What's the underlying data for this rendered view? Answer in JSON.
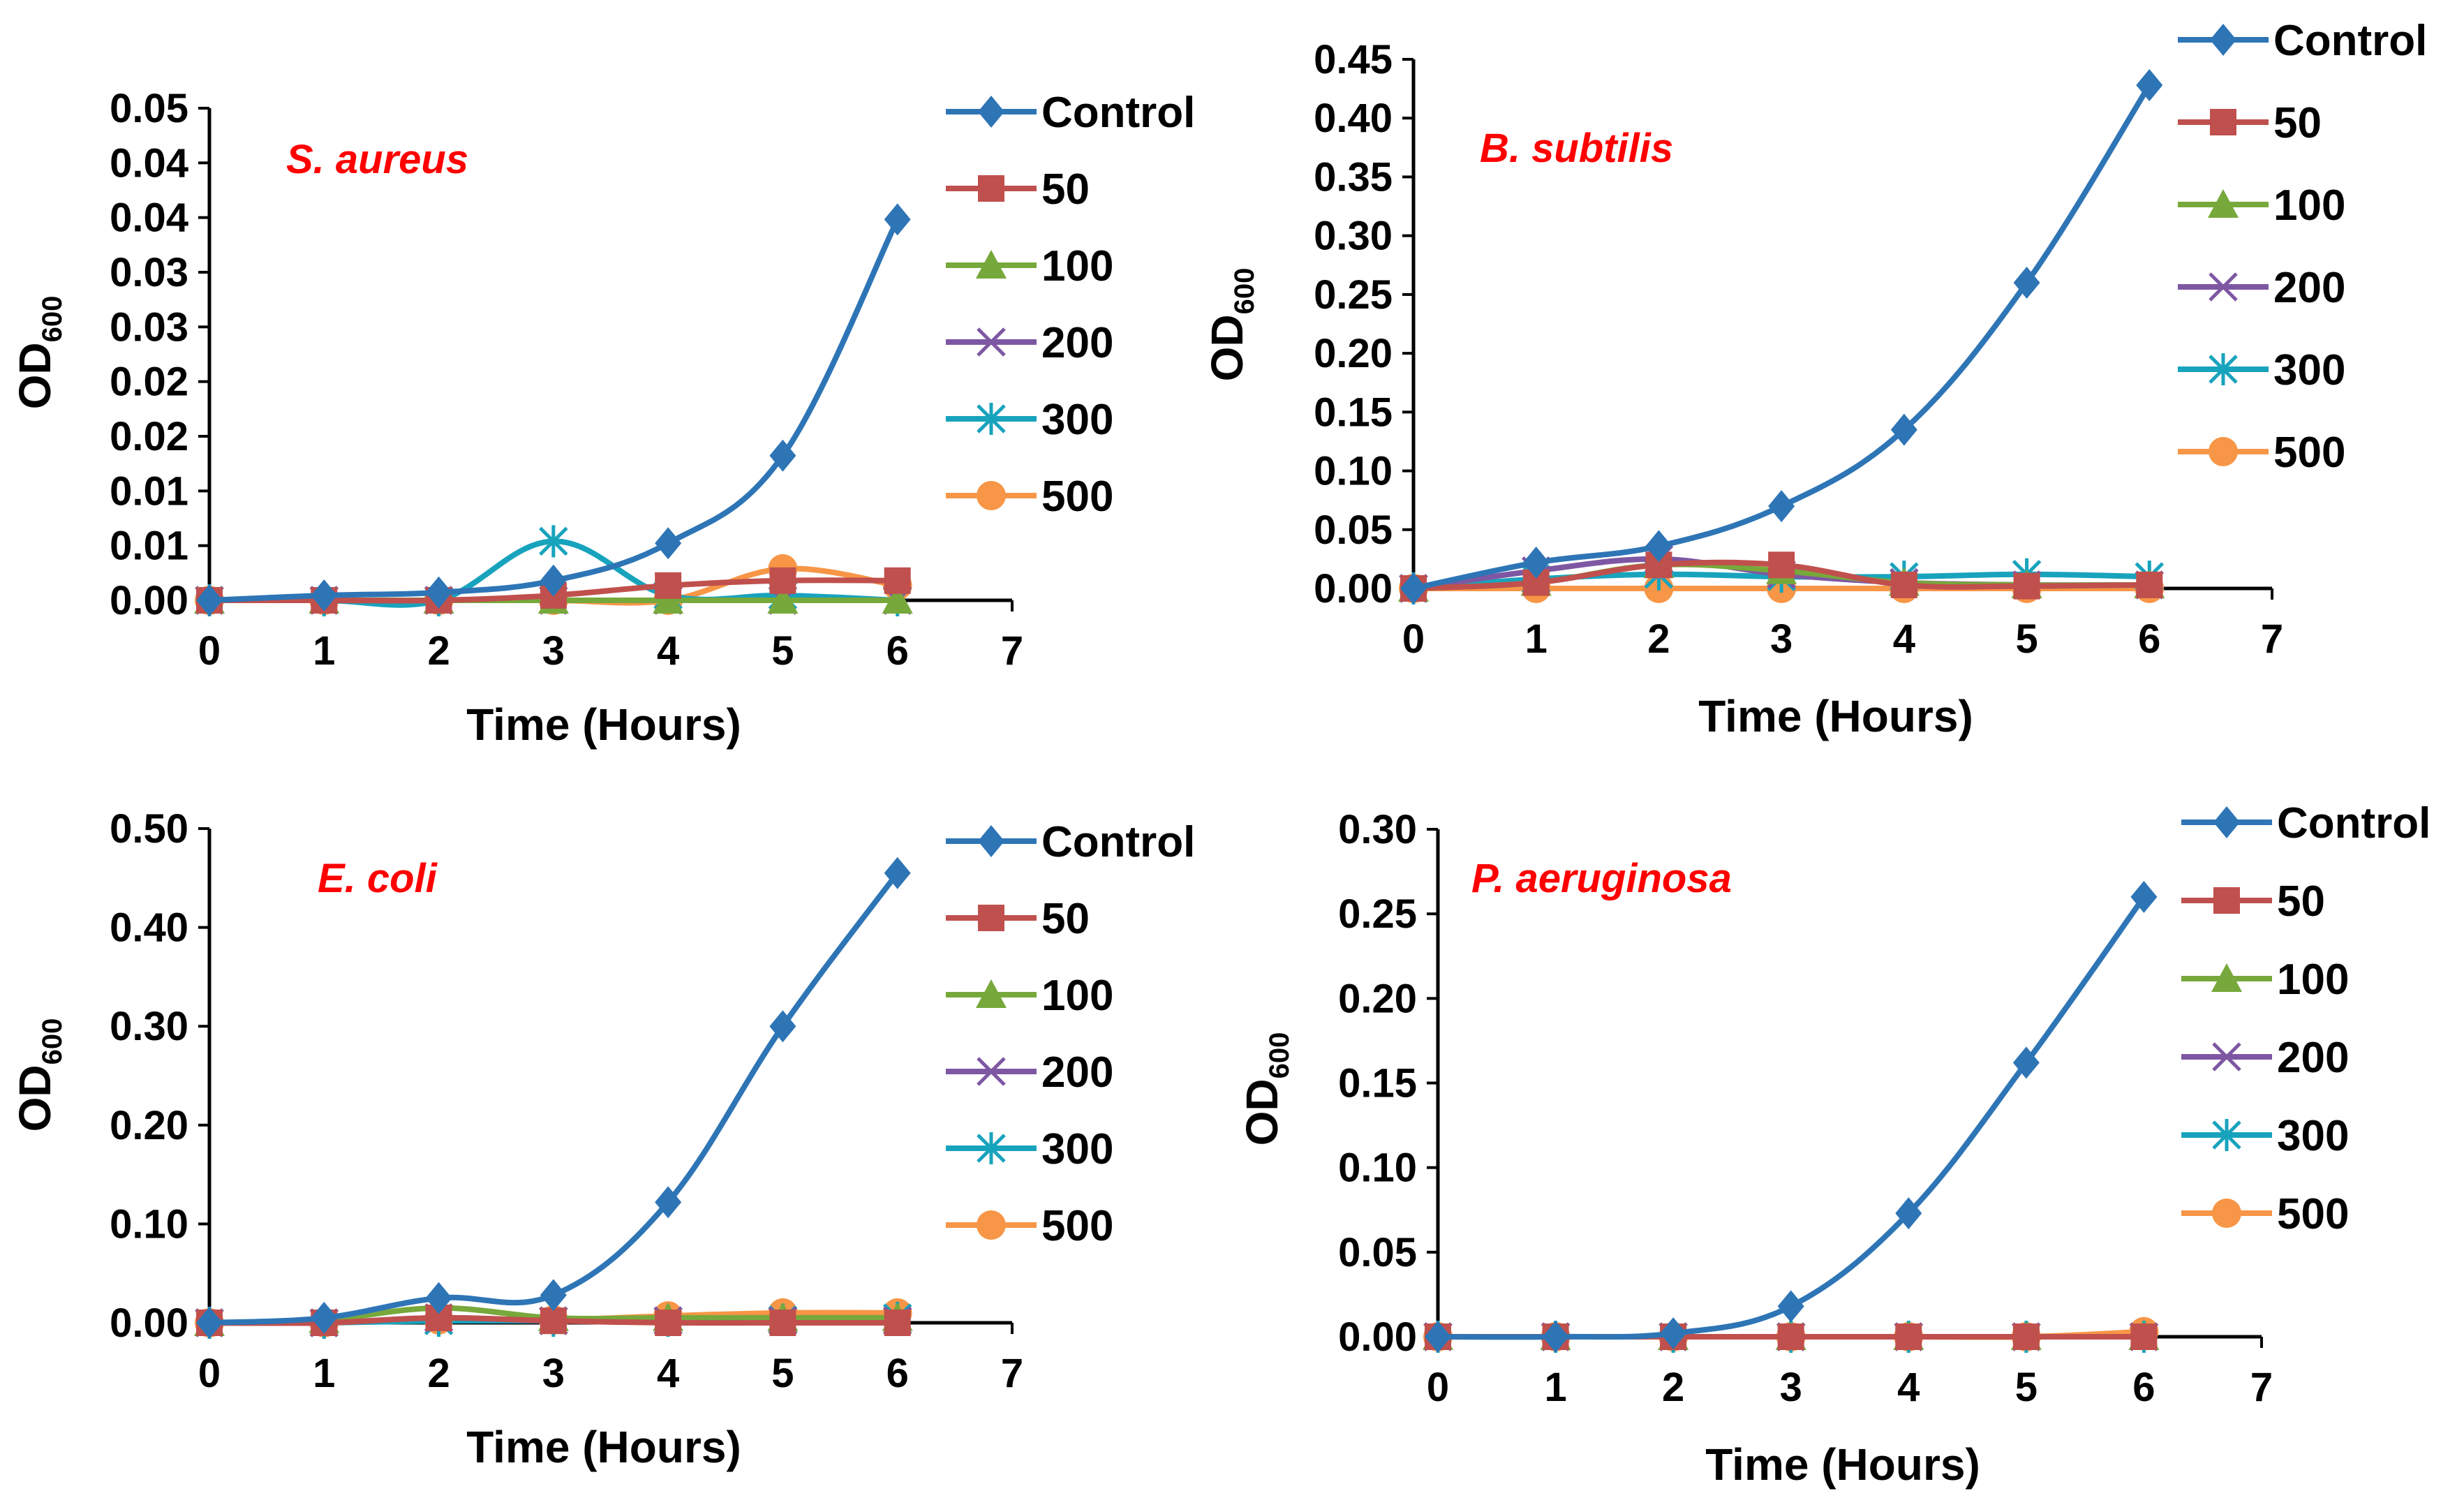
{
  "chart_data": [
    {
      "type": "line",
      "title": "S. aureus",
      "xlabel": "Time (Hours)",
      "ylabel": "OD",
      "ylabel_sub": "600",
      "xlim": [
        0,
        7
      ],
      "ylim": [
        0,
        0.05
      ],
      "xticks": [
        "0",
        "1",
        "2",
        "3",
        "4",
        "5",
        "6",
        "7"
      ],
      "yticks": [
        "0.00",
        "0.01",
        "0.01",
        "0.02",
        "0.02",
        "0.03",
        "0.03",
        "0.04",
        "0.04",
        "0.05"
      ],
      "legend_position": "right",
      "x": [
        0,
        1,
        2,
        3,
        4,
        5,
        6
      ],
      "series": [
        {
          "name": "Control",
          "values": [
            0.0,
            0.0005,
            0.0008,
            0.002,
            0.0058,
            0.0147,
            0.0387
          ]
        },
        {
          "name": "50",
          "values": [
            0.0,
            0.0,
            0.0,
            0.0005,
            0.0015,
            0.002,
            0.002
          ]
        },
        {
          "name": "100",
          "values": [
            0.0,
            0.0,
            0.0,
            0.0,
            0.0,
            0.0,
            0.0
          ]
        },
        {
          "name": "200",
          "values": [
            0.0,
            0.0,
            0.0,
            0.0,
            0.0,
            0.0,
            0.0
          ]
        },
        {
          "name": "300",
          "values": [
            0.0,
            0.0,
            0.0,
            0.006,
            0.0005,
            0.0005,
            0.0
          ]
        },
        {
          "name": "500",
          "values": [
            0.0,
            0.0,
            0.0,
            0.0,
            0.0,
            0.0032,
            0.0015
          ]
        }
      ]
    },
    {
      "type": "line",
      "title": "B. subtilis",
      "xlabel": "Time (Hours)",
      "ylabel": "OD",
      "ylabel_sub": "600",
      "xlim": [
        0,
        7
      ],
      "ylim": [
        0,
        0.45
      ],
      "xticks": [
        "0",
        "1",
        "2",
        "3",
        "4",
        "5",
        "6",
        "7"
      ],
      "yticks": [
        "0.00",
        "0.05",
        "0.10",
        "0.15",
        "0.20",
        "0.25",
        "0.30",
        "0.35",
        "0.40",
        "0.45"
      ],
      "legend_position": "right",
      "x": [
        0,
        1,
        2,
        3,
        4,
        5,
        6
      ],
      "series": [
        {
          "name": "Control",
          "values": [
            0.0,
            0.022,
            0.036,
            0.07,
            0.135,
            0.26,
            0.428
          ]
        },
        {
          "name": "50",
          "values": [
            0.0,
            0.005,
            0.02,
            0.02,
            0.003,
            0.002,
            0.003
          ]
        },
        {
          "name": "100",
          "values": [
            0.0,
            0.005,
            0.02,
            0.015,
            0.005,
            0.003,
            0.003
          ]
        },
        {
          "name": "200",
          "values": [
            0.0,
            0.015,
            0.025,
            0.012,
            0.005,
            0.003,
            0.003
          ]
        },
        {
          "name": "300",
          "values": [
            0.0,
            0.008,
            0.012,
            0.01,
            0.01,
            0.012,
            0.01
          ]
        },
        {
          "name": "500",
          "values": [
            0.0,
            0.0,
            0.0,
            0.0,
            0.0,
            0.0,
            0.0
          ]
        }
      ]
    },
    {
      "type": "line",
      "title": "E. coli",
      "xlabel": "Time (Hours)",
      "ylabel": "OD",
      "ylabel_sub": "600",
      "xlim": [
        0,
        7
      ],
      "ylim": [
        0,
        0.5
      ],
      "xticks": [
        "0",
        "1",
        "2",
        "3",
        "4",
        "5",
        "6",
        "7"
      ],
      "yticks": [
        "0.00",
        "0.10",
        "0.20",
        "0.30",
        "0.40",
        "0.50"
      ],
      "legend_position": "right",
      "x": [
        0,
        1,
        2,
        3,
        4,
        5,
        6
      ],
      "series": [
        {
          "name": "Control",
          "values": [
            0.0,
            0.005,
            0.025,
            0.028,
            0.122,
            0.3,
            0.455
          ]
        },
        {
          "name": "50",
          "values": [
            0.0,
            0.0,
            0.005,
            0.002,
            0.0,
            0.0,
            0.0
          ]
        },
        {
          "name": "100",
          "values": [
            0.0,
            0.003,
            0.015,
            0.005,
            0.005,
            0.005,
            0.005
          ]
        },
        {
          "name": "200",
          "values": [
            0.0,
            0.0,
            0.005,
            0.002,
            0.002,
            0.002,
            0.002
          ]
        },
        {
          "name": "300",
          "values": [
            0.0,
            0.0,
            0.002,
            0.002,
            0.002,
            0.003,
            0.005
          ]
        },
        {
          "name": "500",
          "values": [
            0.0,
            0.0,
            0.003,
            0.003,
            0.007,
            0.01,
            0.01
          ]
        }
      ]
    },
    {
      "type": "line",
      "title": "P. aeruginosa",
      "xlabel": "Time (Hours)",
      "ylabel": "OD",
      "ylabel_sub": "600",
      "xlim": [
        0,
        7
      ],
      "ylim": [
        0,
        0.3
      ],
      "xticks": [
        "0",
        "1",
        "2",
        "3",
        "4",
        "5",
        "6",
        "7"
      ],
      "yticks": [
        "0.00",
        "0.05",
        "0.10",
        "0.15",
        "0.20",
        "0.25",
        "0.30"
      ],
      "legend_position": "right",
      "x": [
        0,
        1,
        2,
        3,
        4,
        5,
        6
      ],
      "series": [
        {
          "name": "Control",
          "values": [
            0.0,
            0.0,
            0.002,
            0.018,
            0.073,
            0.162,
            0.26
          ]
        },
        {
          "name": "50",
          "values": [
            0.0,
            0.0,
            0.0,
            0.0,
            0.0,
            0.0,
            0.0
          ]
        },
        {
          "name": "100",
          "values": [
            0.0,
            0.0,
            0.0,
            0.0,
            0.0,
            0.0,
            0.0
          ]
        },
        {
          "name": "200",
          "values": [
            0.0,
            0.0,
            0.0,
            0.0,
            0.0,
            0.0,
            0.0
          ]
        },
        {
          "name": "300",
          "values": [
            0.0,
            0.0,
            0.0,
            0.0,
            0.0,
            0.0,
            0.0
          ]
        },
        {
          "name": "500",
          "values": [
            0.0,
            0.0,
            0.0,
            0.0,
            0.0,
            0.0,
            0.003
          ]
        }
      ]
    }
  ],
  "series_styles": [
    {
      "name": "Control",
      "color": "#2e75b6",
      "marker": "diamond"
    },
    {
      "name": "50",
      "color": "#c0504d",
      "marker": "square"
    },
    {
      "name": "100",
      "color": "#77a83b",
      "marker": "triangle"
    },
    {
      "name": "200",
      "color": "#7e57a3",
      "marker": "x"
    },
    {
      "name": "300",
      "color": "#18a3bd",
      "marker": "star"
    },
    {
      "name": "500",
      "color": "#f79646",
      "marker": "circle"
    }
  ],
  "title_color": "#ff0000"
}
